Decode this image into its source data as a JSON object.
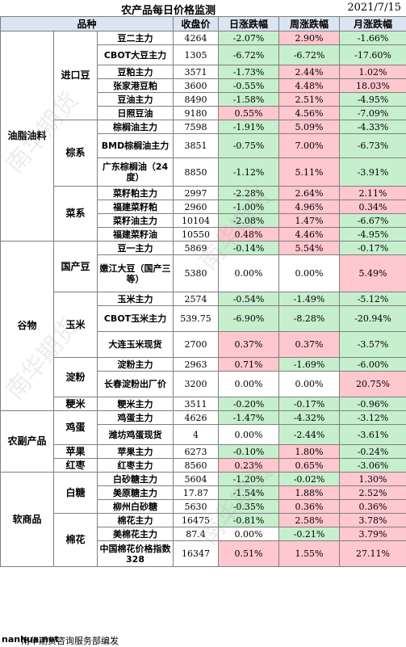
{
  "title": "农产品每日价格监测",
  "date": "2021/7/15",
  "headers": [
    "品种",
    "收盘价",
    "日涨跌幅",
    "周涨跌幅",
    "月涨跌幅"
  ],
  "groups": [
    {
      "name": "油脂油料",
      "subs": [
        {
          "name": "进口豆",
          "rows": [
            [
              "豆二主力",
              "4264",
              "-2.07%",
              "2.90%",
              "-1.66%"
            ],
            [
              "CBOT大豆主力",
              "1305",
              "-6.72%",
              "-6.72%",
              "-17.60%"
            ],
            [
              "豆粕主力",
              "3571",
              "-1.73%",
              "2.44%",
              "1.02%"
            ],
            [
              "张家港豆粕",
              "3600",
              "-0.55%",
              "4.48%",
              "18.03%"
            ],
            [
              "豆油主力",
              "8490",
              "-1.58%",
              "2.51%",
              "-4.95%"
            ],
            [
              "日照豆油",
              "9180",
              "0.55%",
              "4.56%",
              "-7.09%"
            ]
          ]
        },
        {
          "name": "棕系",
          "rows": [
            [
              "棕榈油主力",
              "7598",
              "-1.91%",
              "5.09%",
              "-4.33%"
            ],
            [
              "BMD棕榈油主力",
              "3851",
              "-0.75%",
              "7.00%",
              "-6.73%"
            ],
            [
              "广东棕榈油（24度）",
              "8850",
              "-1.12%",
              "5.11%",
              "-3.91%"
            ]
          ]
        },
        {
          "name": "菜系",
          "rows": [
            [
              "菜籽粕主力",
              "2997",
              "-2.28%",
              "2.64%",
              "2.11%"
            ],
            [
              "福建菜籽粕",
              "2960",
              "-1.00%",
              "4.96%",
              "0.34%"
            ],
            [
              "菜籽油主力",
              "10104",
              "-2.08%",
              "1.47%",
              "-6.67%"
            ],
            [
              "福建菜籽油",
              "10550",
              "0.48%",
              "4.46%",
              "-4.95%"
            ]
          ]
        }
      ]
    },
    {
      "name": "谷物",
      "subs": [
        {
          "name": "国产豆",
          "rows": [
            [
              "豆一主力",
              "5869",
              "-0.14%",
              "5.54%",
              "-0.17%"
            ],
            [
              "嫩江大豆（国产三等）",
              "5380",
              "0.00%",
              "0.00%",
              "5.49%"
            ]
          ]
        },
        {
          "name": "玉米",
          "rows": [
            [
              "玉米主力",
              "2574",
              "-0.54%",
              "-1.49%",
              "-5.12%"
            ],
            [
              "CBOT玉米主力",
              "539.75",
              "-6.90%",
              "-8.28%",
              "-20.94%"
            ],
            [
              "大连玉米现货",
              "2700",
              "0.37%",
              "0.37%",
              "-3.57%"
            ]
          ]
        },
        {
          "name": "淀粉",
          "rows": [
            [
              "淀粉主力",
              "2963",
              "0.71%",
              "-1.69%",
              "-6.00%"
            ],
            [
              "长春淀粉出厂价",
              "3200",
              "0.00%",
              "0.00%",
              "20.75%"
            ]
          ]
        },
        {
          "name": "粳米",
          "rows": [
            [
              "粳米主力",
              "3511",
              "-0.20%",
              "-0.17%",
              "-0.96%"
            ]
          ]
        }
      ]
    },
    {
      "name": "农副产品",
      "subs": [
        {
          "name": "鸡蛋",
          "rows": [
            [
              "鸡蛋主力",
              "4626",
              "-1.47%",
              "-4.32%",
              "-3.12%"
            ],
            [
              "潍坊鸡蛋现货",
              "4",
              "0.00%",
              "-2.44%",
              "-3.61%"
            ]
          ]
        },
        {
          "name": "苹果",
          "rows": [
            [
              "苹果主力",
              "6273",
              "-0.10%",
              "1.80%",
              "-0.24%"
            ]
          ]
        },
        {
          "name": "红枣",
          "rows": [
            [
              "红枣主力",
              "8560",
              "0.23%",
              "0.65%",
              "-3.06%"
            ]
          ]
        }
      ]
    },
    {
      "name": "软商品",
      "subs": [
        {
          "name": "白糖",
          "rows": [
            [
              "白砂糖主力",
              "5604",
              "-1.20%",
              "-0.02%",
              "1.30%"
            ],
            [
              "美原糖主力",
              "17.87",
              "-1.54%",
              "1.88%",
              "2.52%"
            ],
            [
              "柳州白砂糖",
              "5630",
              "-0.35%",
              "0.36%",
              "0.36%"
            ]
          ]
        },
        {
          "name": "棉花",
          "rows": [
            [
              "棉花主力",
              "16475",
              "-0.81%",
              "2.58%",
              "3.78%"
            ],
            [
              "美棉花主力",
              "87.4",
              "0.00%",
              "-0.21%",
              "3.79%"
            ],
            [
              "中国棉花价格指数328",
              "16347",
              "0.51%",
              "1.55%",
              "27.11%"
            ]
          ]
        }
      ]
    }
  ],
  "footer": {
    "site": "nanhua.net",
    "source": "南华期货咨询服务部编发"
  },
  "watermark": "南华期货",
  "colors": {
    "up_bg": "#ffc7ce",
    "down_bg": "#c6efce",
    "header_bg": "#dbe5f1"
  }
}
